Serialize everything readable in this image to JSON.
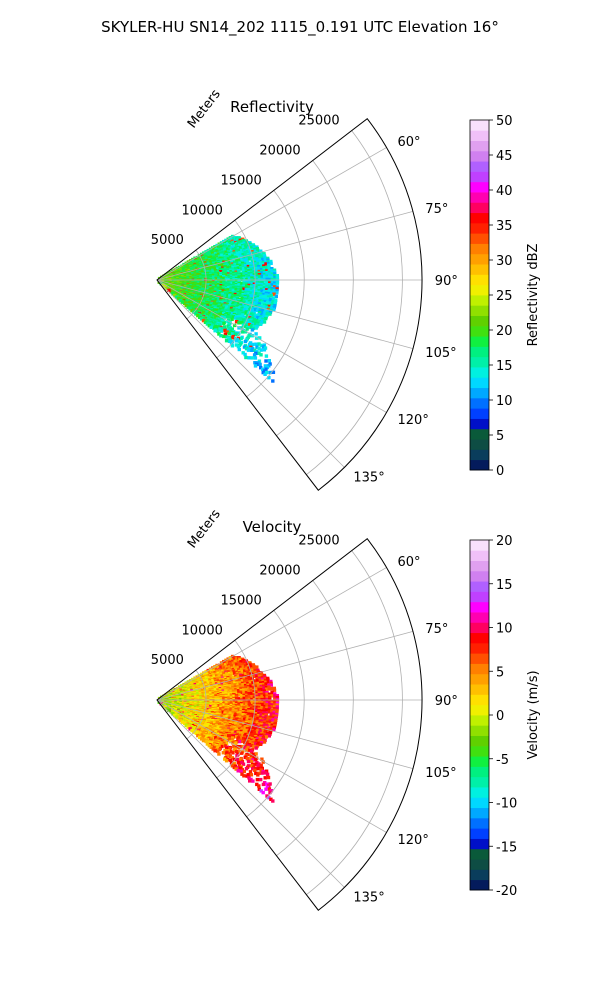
{
  "figure": {
    "title": "SKYLER-HU  SN14_202  1115_0.191 UTC Elevation 16°"
  },
  "chart_data": [
    {
      "type": "polar-sector",
      "title": "Reflectivity",
      "range_label": "Meters",
      "theta_ticks": [
        60,
        75,
        90,
        105,
        120,
        135
      ],
      "theta_range_deg": [
        52.5,
        142.5
      ],
      "r_ticks": [
        5000,
        10000,
        15000,
        20000,
        25000
      ],
      "r_max": 27000,
      "grid": true,
      "colorbar": {
        "label": "Reflectivity dBZ",
        "range": [
          0,
          50
        ],
        "ticks": [
          0,
          5,
          10,
          15,
          20,
          25,
          30,
          35,
          40,
          45,
          50
        ],
        "colors": [
          "#041b5c",
          "#0a3d5c",
          "#0e4d44",
          "#0a5a3a",
          "#0010c8",
          "#0040ff",
          "#0070ff",
          "#00a8ff",
          "#00d8ff",
          "#00f0e0",
          "#00f0a8",
          "#00f080",
          "#10f040",
          "#40e010",
          "#60d000",
          "#90e000",
          "#c0f000",
          "#f0f000",
          "#ffe000",
          "#ffc000",
          "#ffa000",
          "#ff8000",
          "#ff5000",
          "#ff2000",
          "#ff0000",
          "#ff0060",
          "#ff00b0",
          "#ff00ff",
          "#c040ff",
          "#b060ff",
          "#d080f0",
          "#e0a0f0",
          "#f0c0f8",
          "#f8e0fc"
        ]
      },
      "echo_extent": {
        "theta_deg": [
          60,
          132
        ],
        "r_m": [
          0,
          12500
        ],
        "near_range_value": 22,
        "far_range_value": 13,
        "max_value": 36
      }
    },
    {
      "type": "polar-sector",
      "title": "Velocity",
      "range_label": "Meters",
      "theta_ticks": [
        60,
        75,
        90,
        105,
        120,
        135
      ],
      "theta_range_deg": [
        52.5,
        142.5
      ],
      "r_ticks": [
        5000,
        10000,
        15000,
        20000,
        25000
      ],
      "r_max": 27000,
      "grid": true,
      "colorbar": {
        "label": "Velocity (m/s)",
        "range": [
          -20,
          20
        ],
        "ticks": [
          -20,
          -15,
          -10,
          -5,
          0,
          5,
          10,
          15,
          20
        ],
        "colors": [
          "#041b5c",
          "#0a3d5c",
          "#0e4d44",
          "#0a5a3a",
          "#0010c8",
          "#0040ff",
          "#0070ff",
          "#00a8ff",
          "#00d8ff",
          "#00f0e0",
          "#00f0a8",
          "#00f080",
          "#10f040",
          "#40e010",
          "#60d000",
          "#90e000",
          "#c0f000",
          "#f0f000",
          "#ffe000",
          "#ffc000",
          "#ffa000",
          "#ff8000",
          "#ff5000",
          "#ff2000",
          "#ff0000",
          "#ff0060",
          "#ff00b0",
          "#ff00ff",
          "#c040ff",
          "#b060ff",
          "#d080f0",
          "#e0a0f0",
          "#f0c0f8",
          "#f8e0fc"
        ]
      },
      "echo_extent": {
        "theta_deg": [
          60,
          132
        ],
        "r_m": [
          0,
          12500
        ],
        "near_range_value": -2,
        "far_range_value": 9,
        "max_value": 11
      }
    }
  ]
}
